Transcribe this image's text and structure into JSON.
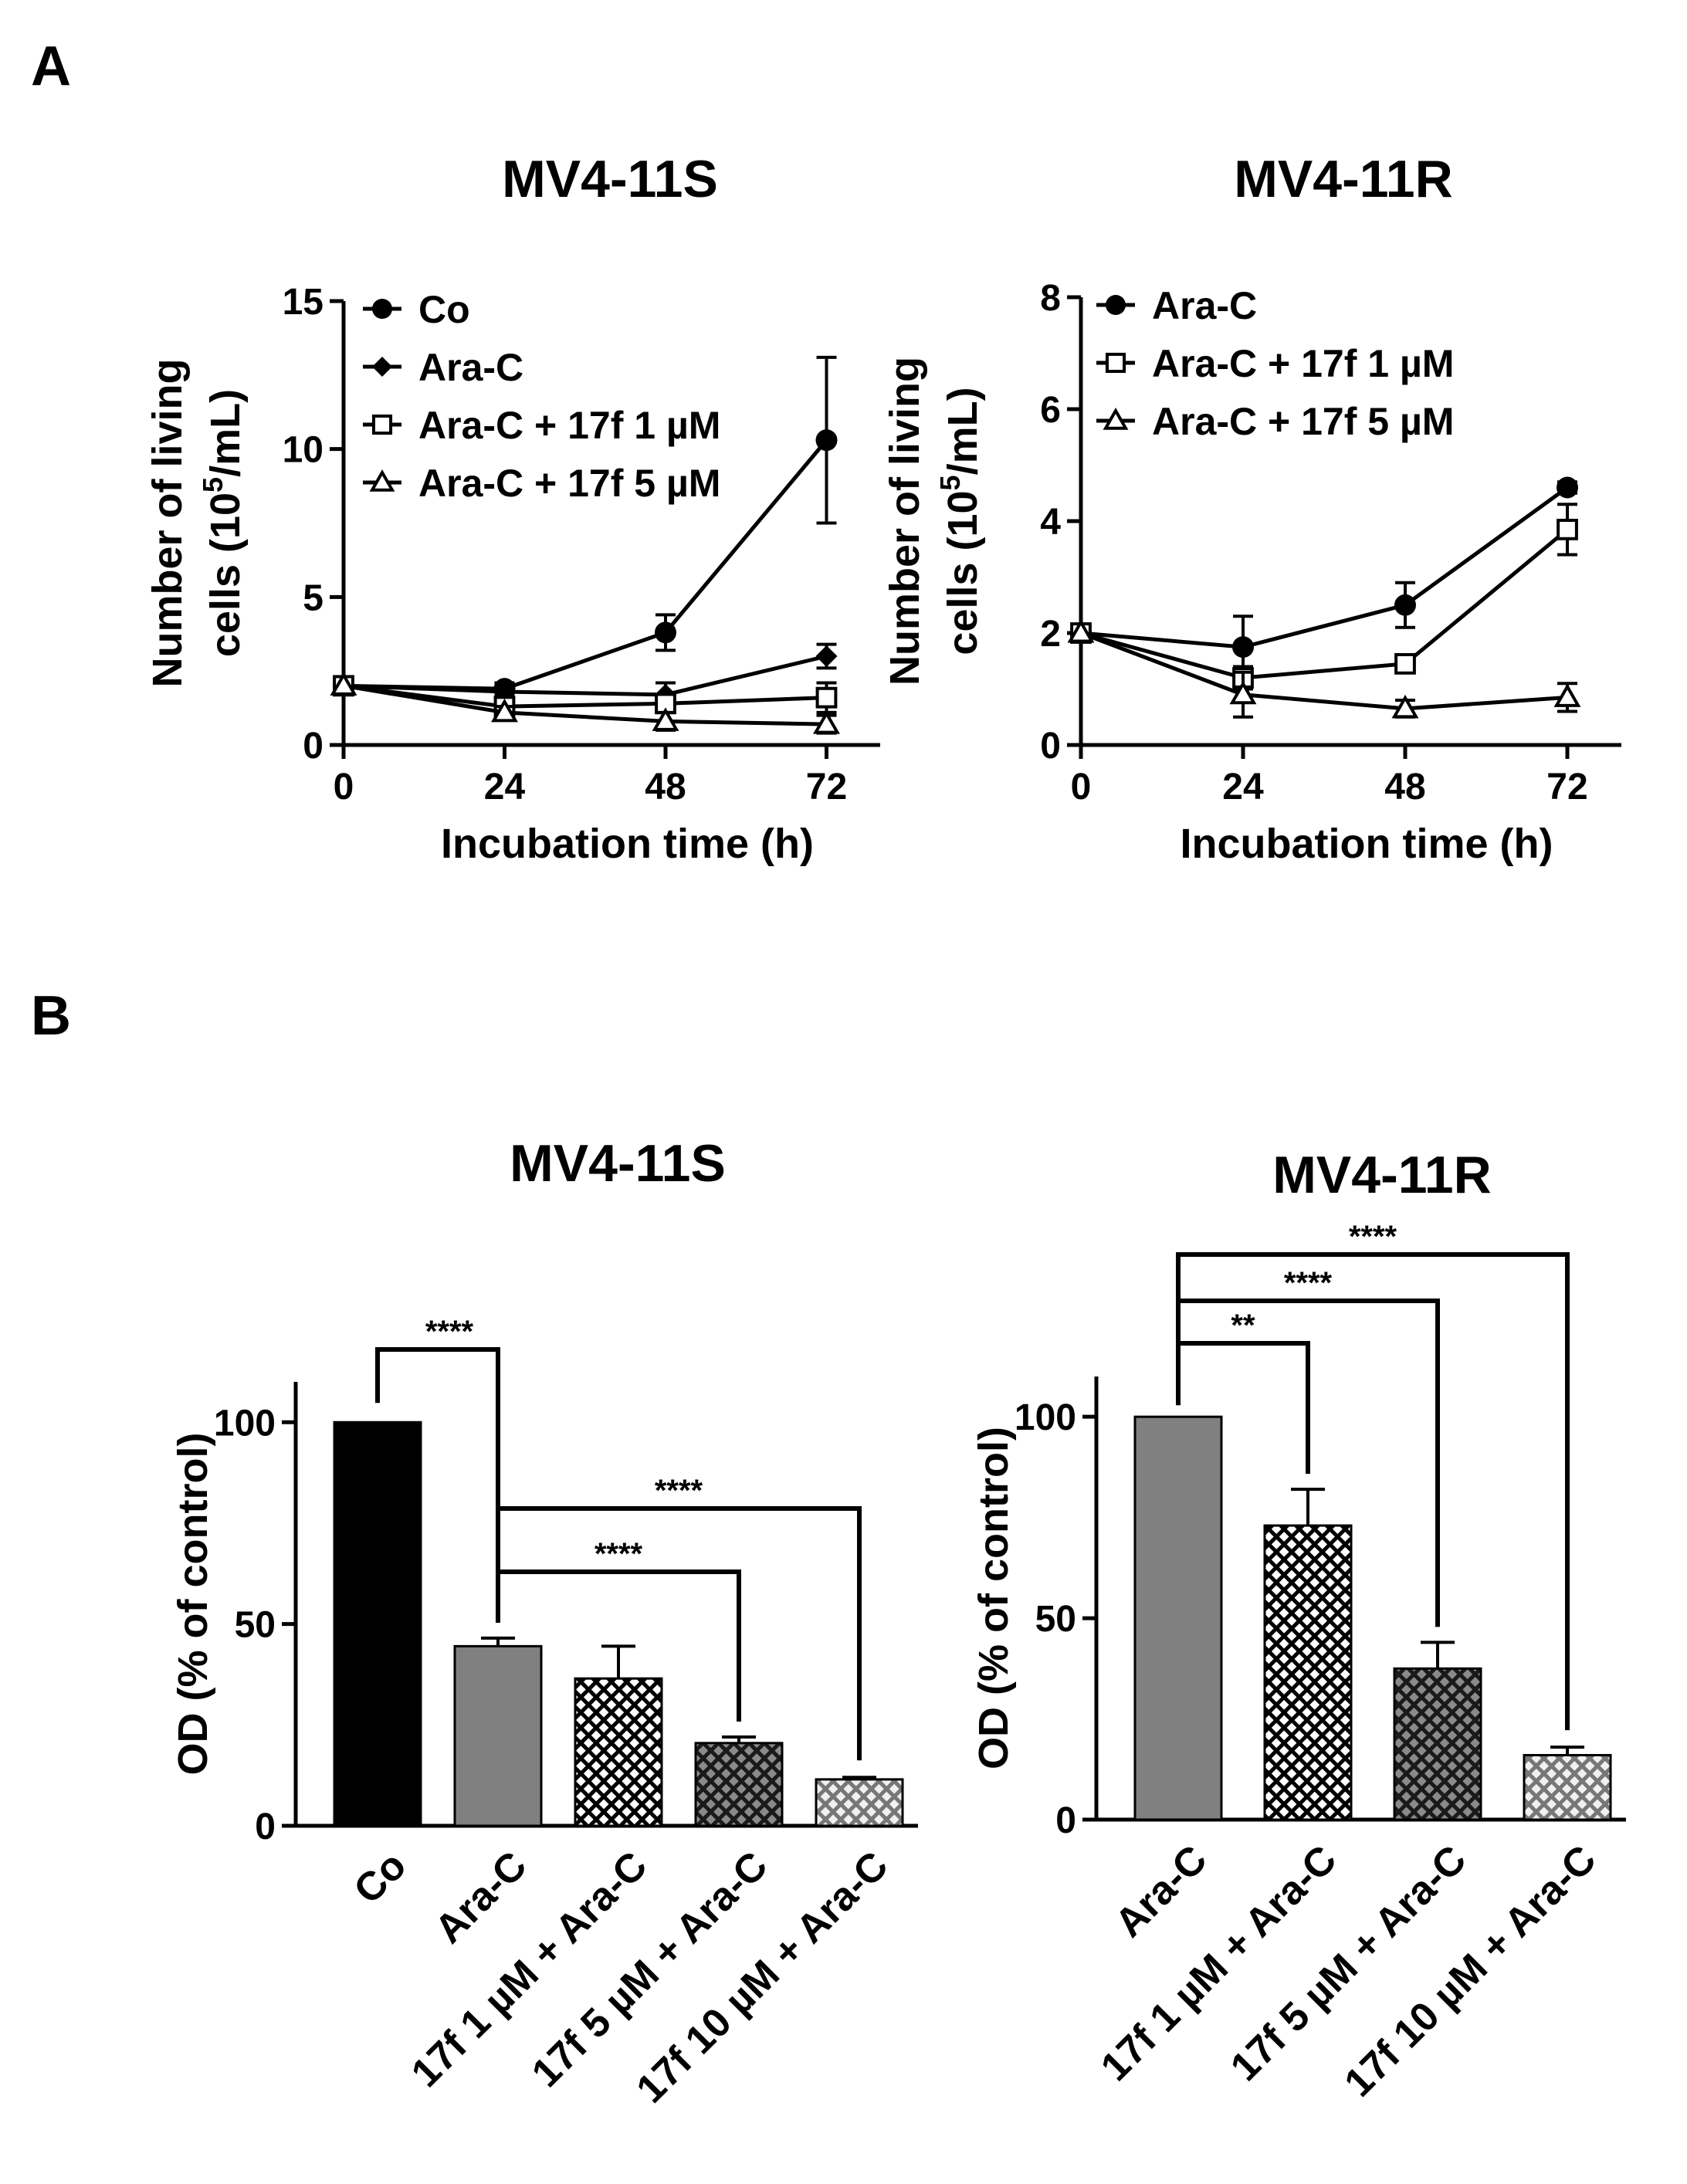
{
  "panels": {
    "A": {
      "label": "A"
    },
    "B": {
      "label": "B"
    }
  },
  "colors": {
    "ink": "#000000",
    "bar_black": "#000000",
    "bar_gray": "#808080",
    "bar_dark": "#404040",
    "bar_light": "#d0d0d0"
  },
  "chart_data": [
    {
      "id": "line_s",
      "type": "line",
      "title": "MV4-11S",
      "xlabel": "Incubation time (h)",
      "ylabel_line1": "Number of living",
      "ylabel_line2_pre": "cells (10",
      "ylabel_line2_sup": "5",
      "ylabel_line2_post": "/mL)",
      "x": [
        0,
        24,
        48,
        72
      ],
      "xticks": [
        "0",
        "24",
        "48",
        "72"
      ],
      "xlim": [
        0,
        80
      ],
      "ylim": [
        0,
        15
      ],
      "yticks": [
        "0",
        "5",
        "10",
        "15"
      ],
      "yticks_v": [
        0,
        5,
        10,
        15
      ],
      "legend_position": "top-left",
      "series": [
        {
          "name": "Co",
          "marker": "circle",
          "values": [
            2.0,
            1.9,
            3.8,
            10.3
          ],
          "err": [
            0,
            0.2,
            0.6,
            2.8
          ]
        },
        {
          "name": "Ara-C",
          "marker": "diamond",
          "values": [
            2.0,
            1.8,
            1.7,
            3.0
          ],
          "err": [
            0,
            0.2,
            0.4,
            0.4
          ]
        },
        {
          "name": "Ara-C + 17f 1 µM",
          "marker": "square-open",
          "values": [
            2.0,
            1.3,
            1.4,
            1.6
          ],
          "err": [
            0,
            0.2,
            0.3,
            0.5
          ]
        },
        {
          "name": "Ara-C + 17f 5 µM",
          "marker": "triangle-open",
          "values": [
            2.0,
            1.1,
            0.8,
            0.7
          ],
          "err": [
            0,
            0.2,
            0.3,
            0.3
          ]
        }
      ]
    },
    {
      "id": "line_r",
      "type": "line",
      "title": "MV4-11R",
      "xlabel": "Incubation time (h)",
      "ylabel_line1": "Number of living",
      "ylabel_line2_pre": "cells (10",
      "ylabel_line2_sup": "5",
      "ylabel_line2_post": "/mL)",
      "x": [
        0,
        24,
        48,
        72
      ],
      "xticks": [
        "0",
        "24",
        "48",
        "72"
      ],
      "xlim": [
        0,
        80
      ],
      "ylim": [
        0,
        8
      ],
      "yticks": [
        "0",
        "2",
        "4",
        "6",
        "8"
      ],
      "yticks_v": [
        0,
        2,
        4,
        6,
        8
      ],
      "legend_position": "top-left",
      "series": [
        {
          "name": "Ara-C",
          "marker": "circle",
          "values": [
            2.0,
            1.75,
            2.5,
            4.6
          ],
          "err": [
            0,
            0.55,
            0.4,
            0.1
          ]
        },
        {
          "name": "Ara-C + 17f 1 µM",
          "marker": "square-open",
          "values": [
            2.0,
            1.2,
            1.45,
            3.85
          ],
          "err": [
            0,
            0.2,
            0.1,
            0.45
          ]
        },
        {
          "name": "Ara-C + 17f 5 µM",
          "marker": "triangle-open",
          "values": [
            2.0,
            0.9,
            0.65,
            0.85
          ],
          "err": [
            0,
            0.4,
            0.15,
            0.25
          ]
        }
      ]
    },
    {
      "id": "bar_s",
      "type": "bar",
      "title": "MV4-11S",
      "ylabel": "OD (% of control)",
      "ylim": [
        0,
        110
      ],
      "yticks": [
        "0",
        "50",
        "100"
      ],
      "yticks_v": [
        0,
        50,
        100
      ],
      "categories": [
        "Co",
        "Ara-C",
        "17f 1 µM + Ara-C",
        "17f 5 µM + Ara-C",
        "17f 10 µM + Ara-C"
      ],
      "values": [
        100,
        44.5,
        36.5,
        20.5,
        11.5
      ],
      "err": [
        0,
        2,
        8,
        1.5,
        0.5
      ],
      "fills": [
        "solid-black",
        "solid-gray",
        "check-white",
        "check-dark",
        "check-light"
      ],
      "significance": [
        {
          "from": 0,
          "to": 1,
          "label": "****"
        },
        {
          "from": 1,
          "to": 3,
          "label": "****"
        },
        {
          "from": 1,
          "to": 4,
          "label": "****"
        }
      ]
    },
    {
      "id": "bar_r",
      "type": "bar",
      "title": "MV4-11R",
      "ylabel": "OD (% of control)",
      "ylim": [
        0,
        110
      ],
      "yticks": [
        "0",
        "50",
        "100"
      ],
      "yticks_v": [
        0,
        50,
        100
      ],
      "categories": [
        "Ara-C",
        "17f 1 µM + Ara-C",
        "17f 5 µM + Ara-C",
        "17f 10 µM + Ara-C"
      ],
      "values": [
        100,
        73,
        37.5,
        16
      ],
      "err": [
        0,
        9,
        6.5,
        2
      ],
      "fills": [
        "solid-gray",
        "check-white",
        "check-dark",
        "check-light"
      ],
      "significance": [
        {
          "from": 0,
          "to": 1,
          "label": "**"
        },
        {
          "from": 0,
          "to": 2,
          "label": "****"
        },
        {
          "from": 0,
          "to": 3,
          "label": "****"
        }
      ]
    }
  ]
}
